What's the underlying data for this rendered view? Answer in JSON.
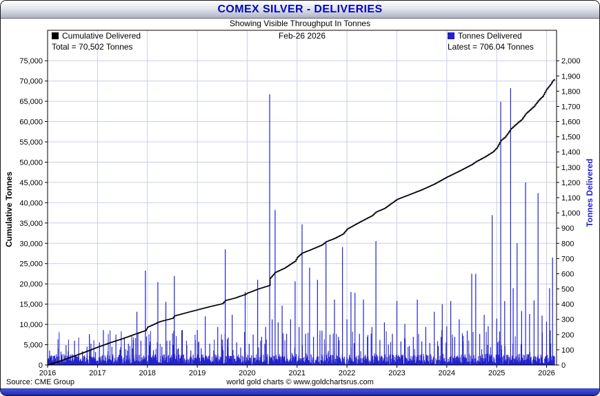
{
  "window": {
    "title": "COMEX SILVER - DELIVERIES",
    "subtitle": "Showing Visible Throughput In Tonnes",
    "date_label": "Feb-26  2026"
  },
  "legend": {
    "left": {
      "label": "Cumulative Delivered",
      "total_label": "Total = 70,502 Tonnes",
      "color": "#000000"
    },
    "right": {
      "label": "Tonnes Delivered",
      "latest_label": "Latest = 706.04 Tonnes",
      "color": "#2222cc"
    }
  },
  "footer": {
    "source": "Source: CME Group",
    "credit": "world gold charts © www.goldchartsrus.com"
  },
  "colors": {
    "title": "#0008b8",
    "accent_blue": "#2222cc",
    "strip_top": "#4553dd",
    "strip_bottom": "#1d25b5",
    "grid": "#c8cfe4"
  },
  "chart_data": {
    "type": "mixed",
    "title": "COMEX SILVER - DELIVERIES",
    "subtitle": "Showing Visible Throughput In Tonnes",
    "as_of": "Feb-26 2026",
    "total_tonnes": 70502,
    "latest_tonnes": 706.04,
    "grid": {
      "on": true,
      "color": "#c8cfe4"
    },
    "x_axis": {
      "min": 2016,
      "max": 2026.2,
      "ticks": [
        2016,
        2017,
        2018,
        2019,
        2020,
        2021,
        2022,
        2023,
        2024,
        2025,
        2026
      ]
    },
    "left_axis": {
      "label": "Cumulative Tonnes",
      "color": "#000000",
      "max": 82500,
      "ticks": [
        0,
        5000,
        10000,
        15000,
        20000,
        25000,
        30000,
        35000,
        40000,
        45000,
        50000,
        55000,
        60000,
        65000,
        70000,
        75000
      ]
    },
    "right_axis": {
      "label": "Tonnes Delivered",
      "color": "#2222cc",
      "max": 2200,
      "ticks": [
        0,
        100,
        200,
        300,
        400,
        500,
        600,
        700,
        800,
        900,
        1000,
        1100,
        1200,
        1300,
        1400,
        1500,
        1600,
        1700,
        1800,
        1900,
        2000
      ]
    },
    "series": [
      {
        "name": "Cumulative Delivered",
        "type": "line",
        "axis": "left",
        "color": "#000000",
        "total": 70502,
        "points": [
          [
            2016.0,
            0
          ],
          [
            2016.25,
            1000
          ],
          [
            2016.5,
            2100
          ],
          [
            2016.75,
            3200
          ],
          [
            2017.0,
            4400
          ],
          [
            2017.25,
            5500
          ],
          [
            2017.5,
            6500
          ],
          [
            2017.75,
            7600
          ],
          [
            2017.96,
            8500
          ],
          [
            2018.0,
            9300
          ],
          [
            2018.21,
            10500
          ],
          [
            2018.25,
            10700
          ],
          [
            2018.5,
            11500
          ],
          [
            2018.54,
            12100
          ],
          [
            2018.75,
            12800
          ],
          [
            2019.0,
            13600
          ],
          [
            2019.25,
            14400
          ],
          [
            2019.5,
            15100
          ],
          [
            2019.56,
            15900
          ],
          [
            2019.75,
            16500
          ],
          [
            2019.96,
            17400
          ],
          [
            2020.0,
            17700
          ],
          [
            2020.21,
            18700
          ],
          [
            2020.44,
            19600
          ],
          [
            2020.46,
            21400
          ],
          [
            2020.56,
            22800
          ],
          [
            2020.75,
            23900
          ],
          [
            2020.96,
            25600
          ],
          [
            2021.0,
            26500
          ],
          [
            2021.1,
            27600
          ],
          [
            2021.25,
            28300
          ],
          [
            2021.5,
            29600
          ],
          [
            2021.58,
            30400
          ],
          [
            2021.75,
            31200
          ],
          [
            2021.92,
            32300
          ],
          [
            2022.0,
            33500
          ],
          [
            2022.25,
            35200
          ],
          [
            2022.5,
            36800
          ],
          [
            2022.58,
            37700
          ],
          [
            2022.75,
            38600
          ],
          [
            2023.0,
            40800
          ],
          [
            2023.25,
            42000
          ],
          [
            2023.5,
            43200
          ],
          [
            2023.75,
            44600
          ],
          [
            2024.0,
            46300
          ],
          [
            2024.25,
            47800
          ],
          [
            2024.5,
            49400
          ],
          [
            2024.58,
            50100
          ],
          [
            2024.75,
            51200
          ],
          [
            2024.92,
            52500
          ],
          [
            2025.0,
            53500
          ],
          [
            2025.08,
            55300
          ],
          [
            2025.17,
            56200
          ],
          [
            2025.28,
            58100
          ],
          [
            2025.33,
            58700
          ],
          [
            2025.42,
            59700
          ],
          [
            2025.5,
            60500
          ],
          [
            2025.58,
            61900
          ],
          [
            2025.67,
            62900
          ],
          [
            2025.75,
            63800
          ],
          [
            2025.83,
            65100
          ],
          [
            2025.92,
            66200
          ],
          [
            2026.0,
            68000
          ],
          [
            2026.08,
            69200
          ],
          [
            2026.12,
            70000
          ],
          [
            2026.16,
            70502
          ]
        ]
      },
      {
        "name": "Tonnes Delivered",
        "type": "bar",
        "axis": "right",
        "color": "#2222cc",
        "latest": 706.04,
        "points": [
          [
            2016.04,
            95
          ],
          [
            2016.12,
            60
          ],
          [
            2016.21,
            110
          ],
          [
            2016.29,
            70
          ],
          [
            2016.37,
            130
          ],
          [
            2016.45,
            55
          ],
          [
            2016.54,
            160
          ],
          [
            2016.62,
            75
          ],
          [
            2016.7,
            90
          ],
          [
            2016.79,
            120
          ],
          [
            2016.87,
            140
          ],
          [
            2016.96,
            85
          ],
          [
            2017.04,
            150
          ],
          [
            2017.12,
            230
          ],
          [
            2017.21,
            90
          ],
          [
            2017.29,
            120
          ],
          [
            2017.37,
            200
          ],
          [
            2017.45,
            100
          ],
          [
            2017.54,
            180
          ],
          [
            2017.62,
            140
          ],
          [
            2017.7,
            110
          ],
          [
            2017.79,
            350
          ],
          [
            2017.87,
            160
          ],
          [
            2017.96,
            620
          ],
          [
            2018.04,
            130
          ],
          [
            2018.12,
            90
          ],
          [
            2018.21,
            545
          ],
          [
            2018.29,
            120
          ],
          [
            2018.37,
            415
          ],
          [
            2018.45,
            160
          ],
          [
            2018.54,
            585
          ],
          [
            2018.62,
            110
          ],
          [
            2018.7,
            230
          ],
          [
            2018.79,
            130
          ],
          [
            2018.87,
            95
          ],
          [
            2018.96,
            165
          ],
          [
            2019.0,
            230
          ],
          [
            2019.08,
            110
          ],
          [
            2019.16,
            320
          ],
          [
            2019.25,
            140
          ],
          [
            2019.33,
            95
          ],
          [
            2019.41,
            250
          ],
          [
            2019.5,
            125
          ],
          [
            2019.56,
            760
          ],
          [
            2019.62,
            180
          ],
          [
            2019.7,
            330
          ],
          [
            2019.79,
            150
          ],
          [
            2019.87,
            115
          ],
          [
            2019.96,
            480
          ],
          [
            2020.04,
            140
          ],
          [
            2020.12,
            200
          ],
          [
            2020.21,
            560
          ],
          [
            2020.29,
            185
          ],
          [
            2020.37,
            250
          ],
          [
            2020.45,
            1780
          ],
          [
            2020.5,
            300
          ],
          [
            2020.56,
            1020
          ],
          [
            2020.62,
            280
          ],
          [
            2020.7,
            390
          ],
          [
            2020.79,
            205
          ],
          [
            2020.87,
            300
          ],
          [
            2020.96,
            550
          ],
          [
            2021.04,
            250
          ],
          [
            2021.1,
            925
          ],
          [
            2021.17,
            205
          ],
          [
            2021.25,
            640
          ],
          [
            2021.33,
            185
          ],
          [
            2021.41,
            560
          ],
          [
            2021.5,
            225
          ],
          [
            2021.58,
            800
          ],
          [
            2021.66,
            200
          ],
          [
            2021.75,
            430
          ],
          [
            2021.83,
            185
          ],
          [
            2021.91,
            775
          ],
          [
            2022.0,
            300
          ],
          [
            2022.08,
            480
          ],
          [
            2022.16,
            475
          ],
          [
            2022.25,
            205
          ],
          [
            2022.33,
            430
          ],
          [
            2022.41,
            185
          ],
          [
            2022.5,
            250
          ],
          [
            2022.58,
            815
          ],
          [
            2022.66,
            165
          ],
          [
            2022.75,
            280
          ],
          [
            2022.83,
            135
          ],
          [
            2022.91,
            205
          ],
          [
            2023.0,
            420
          ],
          [
            2023.08,
            155
          ],
          [
            2023.16,
            270
          ],
          [
            2023.25,
            125
          ],
          [
            2023.33,
            185
          ],
          [
            2023.41,
            430
          ],
          [
            2023.5,
            155
          ],
          [
            2023.58,
            250
          ],
          [
            2023.66,
            145
          ],
          [
            2023.75,
            350
          ],
          [
            2023.83,
            125
          ],
          [
            2023.91,
            400
          ],
          [
            2024.0,
            255
          ],
          [
            2024.08,
            420
          ],
          [
            2024.16,
            185
          ],
          [
            2024.25,
            300
          ],
          [
            2024.33,
            155
          ],
          [
            2024.41,
            225
          ],
          [
            2024.5,
            600
          ],
          [
            2024.58,
            600
          ],
          [
            2024.66,
            205
          ],
          [
            2024.75,
            330
          ],
          [
            2024.83,
            255
          ],
          [
            2024.91,
            985
          ],
          [
            2025.0,
            305
          ],
          [
            2025.08,
            1730
          ],
          [
            2025.16,
            420
          ],
          [
            2025.28,
            1820
          ],
          [
            2025.33,
            505
          ],
          [
            2025.41,
            800
          ],
          [
            2025.5,
            355
          ],
          [
            2025.58,
            1200
          ],
          [
            2025.66,
            335
          ],
          [
            2025.75,
            425
          ],
          [
            2025.83,
            1130
          ],
          [
            2025.91,
            325
          ],
          [
            2026.0,
            285
          ],
          [
            2026.06,
            505
          ],
          [
            2026.12,
            706.04
          ]
        ],
        "baseline_noise": {
          "seed": 7,
          "step": 0.004,
          "until": 2026.16,
          "typical_max": 70,
          "spike_chance": 0.045,
          "spike_extra": 160
        }
      }
    ]
  }
}
